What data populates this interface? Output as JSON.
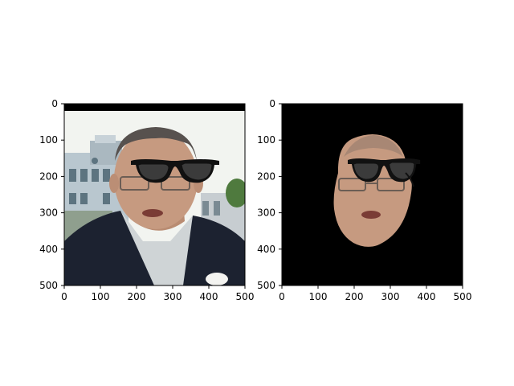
{
  "figure": {
    "background": "#ffffff",
    "panels": [
      {
        "id": "left",
        "content": "original photo: man in dark blazer with cartoon eyeglasses overlay",
        "x_ticks": [
          "0",
          "100",
          "200",
          "300",
          "400",
          "500"
        ],
        "y_ticks": [
          "0",
          "100",
          "200",
          "300",
          "400",
          "500"
        ],
        "xlim": [
          0,
          500
        ],
        "ylim": [
          500,
          0
        ],
        "colors": {
          "sky": "#f2f4f0",
          "building": "#b9c7cf",
          "jacket": "#1c2230",
          "skin": "#c69a80",
          "hair": "#57514e",
          "shirt": "#cfd4d6",
          "top_band": "#000000"
        }
      },
      {
        "id": "right",
        "content": "segmented face with eyeglasses overlay on black background",
        "x_ticks": [
          "0",
          "100",
          "200",
          "300",
          "400",
          "500"
        ],
        "y_ticks": [
          "0",
          "100",
          "200",
          "300",
          "400",
          "500"
        ],
        "xlim": [
          0,
          500
        ],
        "ylim": [
          500,
          0
        ],
        "colors": {
          "background": "#000000",
          "skin": "#c69a80"
        }
      }
    ]
  }
}
